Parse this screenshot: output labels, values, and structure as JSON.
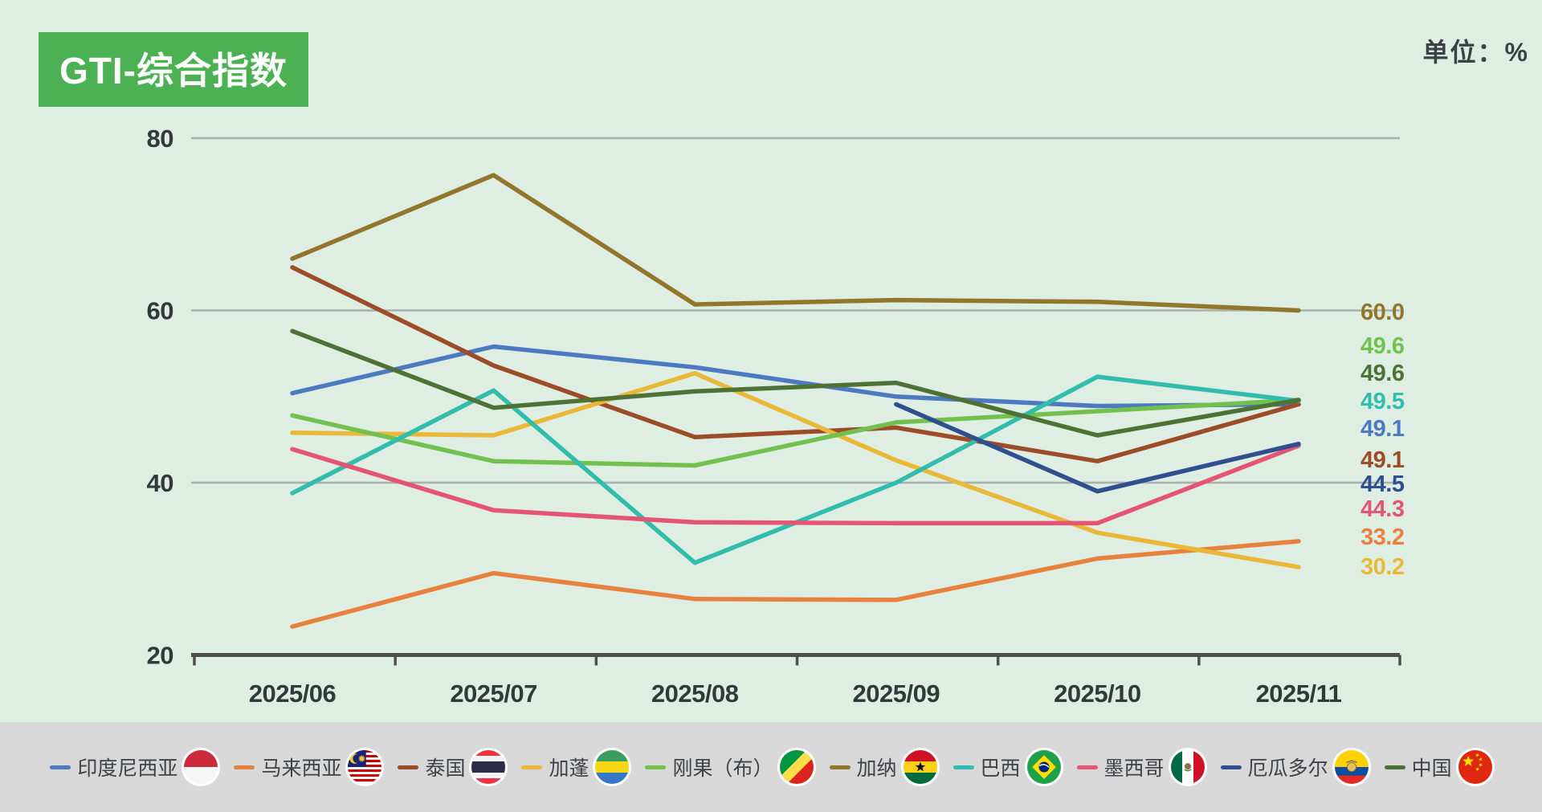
{
  "header": {
    "title": "GTI-综合指数",
    "unit_label": "单位：%"
  },
  "chart_data": {
    "type": "line",
    "title": "GTI-综合指数",
    "unit": "%",
    "x_categories": [
      "2025/06",
      "2025/07",
      "2025/08",
      "2025/09",
      "2025/10",
      "2025/11"
    ],
    "y_axis": {
      "ticks": [
        80,
        60,
        40,
        20
      ],
      "gridlines": [
        80,
        60,
        40
      ],
      "min": 20,
      "max": 80,
      "grid_on": true
    },
    "legend_position": "bottom",
    "series": [
      {
        "name": "印度尼西亚",
        "flag": "indonesia",
        "color": "#4d79c0",
        "values": [
          50.4,
          55.8,
          53.4,
          50.0,
          48.9,
          49.1
        ],
        "end_value": "49.1"
      },
      {
        "name": "马来西亚",
        "flag": "malaysia",
        "color": "#e8803e",
        "values": [
          23.3,
          29.5,
          26.5,
          26.4,
          31.2,
          33.2
        ],
        "end_value": "33.2"
      },
      {
        "name": "泰国",
        "flag": "thailand",
        "color": "#9c4c26",
        "values": [
          65.0,
          53.6,
          45.3,
          46.4,
          42.5,
          49.1
        ],
        "end_value": "49.1"
      },
      {
        "name": "加蓬",
        "flag": "gabon",
        "color": "#eab838",
        "values": [
          45.8,
          45.5,
          52.7,
          42.6,
          34.2,
          30.2
        ],
        "end_value": "30.2"
      },
      {
        "name": "刚果（布）",
        "flag": "congo",
        "color": "#72c14e",
        "values": [
          47.8,
          42.5,
          42.0,
          47.0,
          48.3,
          49.6
        ],
        "end_value": "49.6"
      },
      {
        "name": "加纳",
        "flag": "ghana",
        "color": "#91762b",
        "values": [
          66.0,
          75.7,
          60.7,
          61.2,
          61.0,
          60.0
        ],
        "end_value": "60.0"
      },
      {
        "name": "巴西",
        "flag": "brazil",
        "color": "#31bcab",
        "values": [
          38.8,
          50.7,
          30.7,
          40.0,
          52.3,
          49.5
        ],
        "end_value": "49.5"
      },
      {
        "name": "墨西哥",
        "flag": "mexico",
        "color": "#e45573",
        "values": [
          43.9,
          36.8,
          35.4,
          35.3,
          35.3,
          44.3
        ],
        "end_value": "44.3"
      },
      {
        "name": "厄瓜多尔",
        "flag": "ecuador",
        "color": "#2f4f8f",
        "values": [
          null,
          null,
          null,
          49.1,
          39.0,
          44.5
        ],
        "end_value": "44.5"
      },
      {
        "name": "中国",
        "flag": "china",
        "color": "#4e7136",
        "values": [
          57.6,
          48.7,
          50.6,
          51.6,
          45.5,
          49.6
        ],
        "end_value": "49.6"
      }
    ],
    "end_labels": [
      {
        "text": "60.0",
        "color": "#91762b"
      },
      {
        "text": "49.6",
        "color": "#72c14e"
      },
      {
        "text": "49.6",
        "color": "#4e7136"
      },
      {
        "text": "49.5",
        "color": "#31bcab"
      },
      {
        "text": "49.1",
        "color": "#4d79c0"
      },
      {
        "text": "49.1",
        "color": "#9c4c26"
      },
      {
        "text": "44.5",
        "color": "#2f4f8f"
      },
      {
        "text": "44.3",
        "color": "#e45573"
      },
      {
        "text": "33.2",
        "color": "#e8803e"
      },
      {
        "text": "30.2",
        "color": "#eab838"
      }
    ],
    "colors": {
      "background": "#dfeee3",
      "legend_band": "#d8d8d8",
      "title_box": "#4bb153",
      "gridline": "#aab0ab",
      "axis": "#4f4f4f",
      "axis_text": "#33383b"
    }
  }
}
